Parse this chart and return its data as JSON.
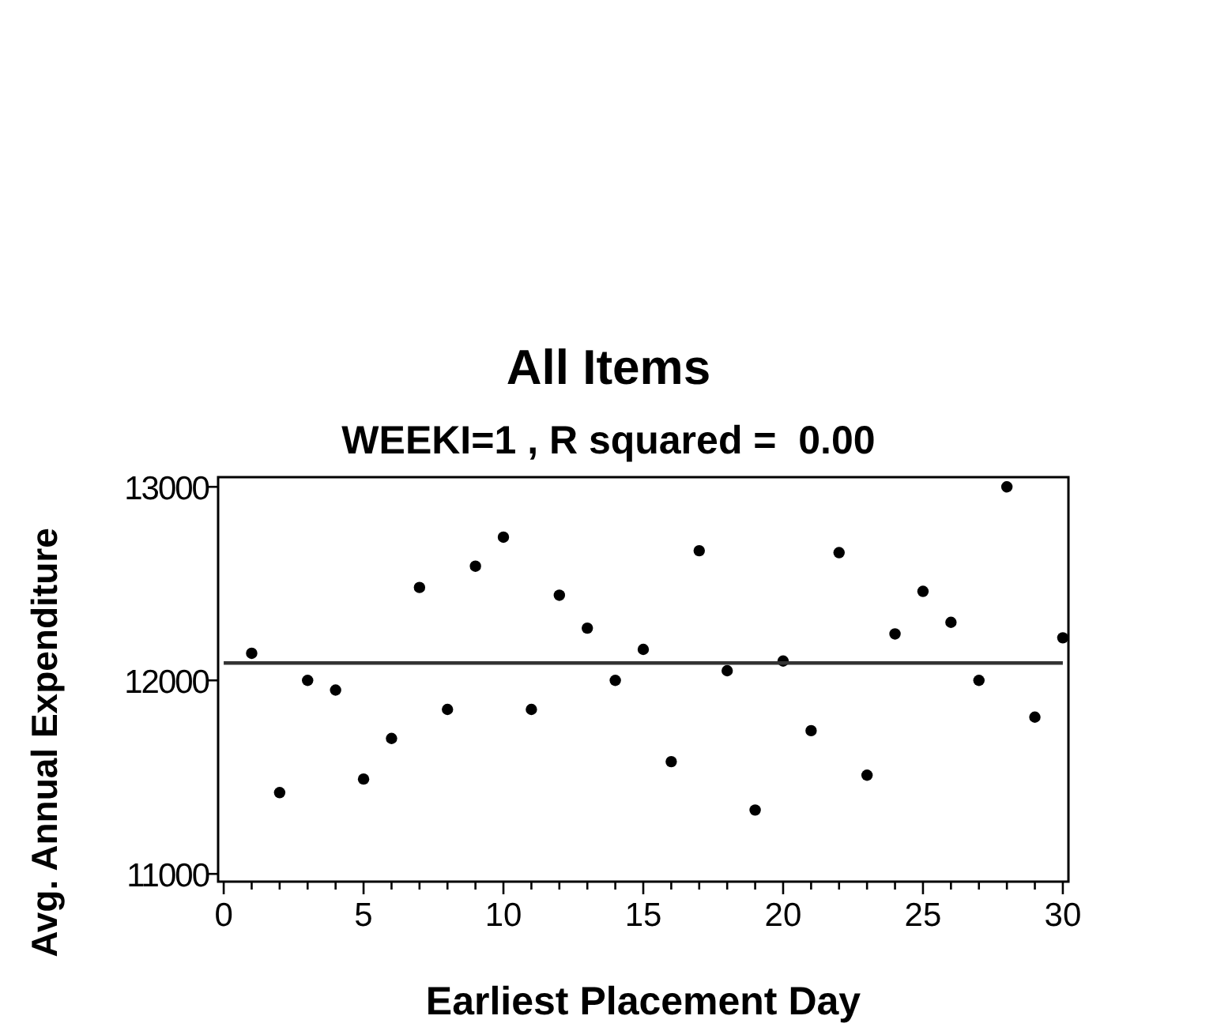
{
  "chart_data": {
    "type": "scatter",
    "title": "All Items",
    "subtitle": "WEEKI=1 , R squared =  0.00",
    "xlabel": "Earliest Placement Day",
    "ylabel": "Avg. Annual Expenditure",
    "xlim": [
      -0.2,
      30.2
    ],
    "ylim": [
      10960,
      13050
    ],
    "xticks": [
      0,
      {
        "value": 1,
        "label": null
      },
      {
        "value": 2,
        "label": null
      },
      {
        "value": 3,
        "label": null
      },
      {
        "value": 4,
        "label": null
      },
      5,
      {
        "value": 6,
        "label": null
      },
      {
        "value": 7,
        "label": null
      },
      {
        "value": 8,
        "label": null
      },
      {
        "value": 9,
        "label": null
      },
      10,
      {
        "value": 11,
        "label": null
      },
      {
        "value": 12,
        "label": null
      },
      {
        "value": 13,
        "label": null
      },
      {
        "value": 14,
        "label": null
      },
      15,
      {
        "value": 16,
        "label": null
      },
      {
        "value": 17,
        "label": null
      },
      {
        "value": 18,
        "label": null
      },
      {
        "value": 19,
        "label": null
      },
      20,
      {
        "value": 21,
        "label": null
      },
      {
        "value": 22,
        "label": null
      },
      {
        "value": 23,
        "label": null
      },
      {
        "value": 24,
        "label": null
      },
      25,
      {
        "value": 26,
        "label": null
      },
      {
        "value": 27,
        "label": null
      },
      {
        "value": 28,
        "label": null
      },
      {
        "value": 29,
        "label": null
      },
      30
    ],
    "yticks": [
      11000,
      12000,
      13000
    ],
    "grid": false,
    "marker": "circle",
    "series": [
      {
        "color": "#000000",
        "x": [
          1,
          2,
          3,
          4,
          5,
          6,
          7,
          8,
          9,
          10,
          11,
          12,
          13,
          14,
          15,
          16,
          17,
          18,
          19,
          20,
          21,
          22,
          23,
          24,
          25,
          26,
          27,
          28,
          29,
          30
        ],
        "values": [
          12140,
          11420,
          12000,
          11950,
          11490,
          11700,
          12480,
          11850,
          12590,
          12740,
          11850,
          12440,
          12270,
          12000,
          12160,
          11580,
          12670,
          12050,
          11330,
          12100,
          11740,
          12660,
          11510,
          12240,
          12460,
          12300,
          12000,
          13000,
          11810,
          12220
        ]
      },
      {
        "type": "line",
        "color": "#333333",
        "marker": "none",
        "x": [
          0,
          30
        ],
        "values": [
          12090,
          12090
        ]
      }
    ]
  }
}
